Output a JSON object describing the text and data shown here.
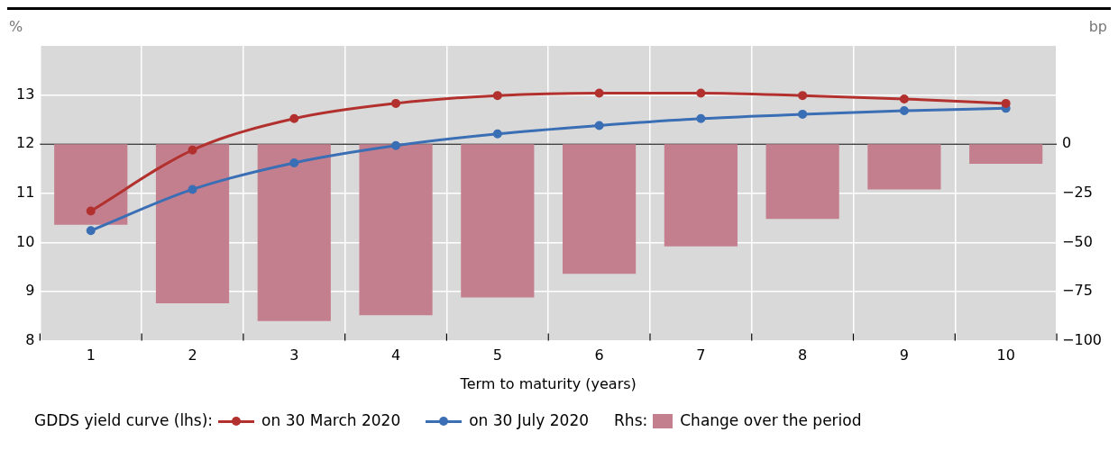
{
  "chart_data": {
    "type": "bar",
    "categories": [
      "1",
      "2",
      "3",
      "4",
      "5",
      "6",
      "7",
      "8",
      "9",
      "10"
    ],
    "xlabel": "Term to maturity (years)",
    "ylabel": "%",
    "y2label": "bp",
    "series": [
      {
        "name": "on 30 March 2020",
        "type": "line",
        "color": "#b2312e",
        "values": [
          10.64,
          11.88,
          12.52,
          12.83,
          12.99,
          13.04,
          13.04,
          12.99,
          12.92,
          12.83
        ]
      },
      {
        "name": "on 30 July 2020",
        "type": "line",
        "color": "#3a6eb5",
        "values": [
          10.24,
          11.08,
          11.62,
          11.97,
          12.21,
          12.38,
          12.52,
          12.61,
          12.68,
          12.73
        ]
      },
      {
        "name": "Change over the period",
        "axis": "y2",
        "color": "#c47f8e",
        "values": [
          -41,
          -81,
          -90,
          -87,
          -78,
          -66,
          -52,
          -38,
          -23,
          -10
        ]
      }
    ],
    "ylim": [
      8,
      14
    ],
    "yticks": [
      8,
      9,
      10,
      11,
      12,
      13
    ],
    "y2lim": [
      -100,
      50
    ],
    "y2ticks": [
      -100,
      -75,
      -50,
      -25,
      0
    ],
    "ref_lines": [
      {
        "axis": "y",
        "value": 12,
        "color": "#444444"
      }
    ],
    "annotations": [
      "GDDS yield curve (lhs):",
      "Rhs:"
    ],
    "grid": true,
    "legend": "bottom",
    "marker": "circle",
    "line_style": "solid"
  }
}
